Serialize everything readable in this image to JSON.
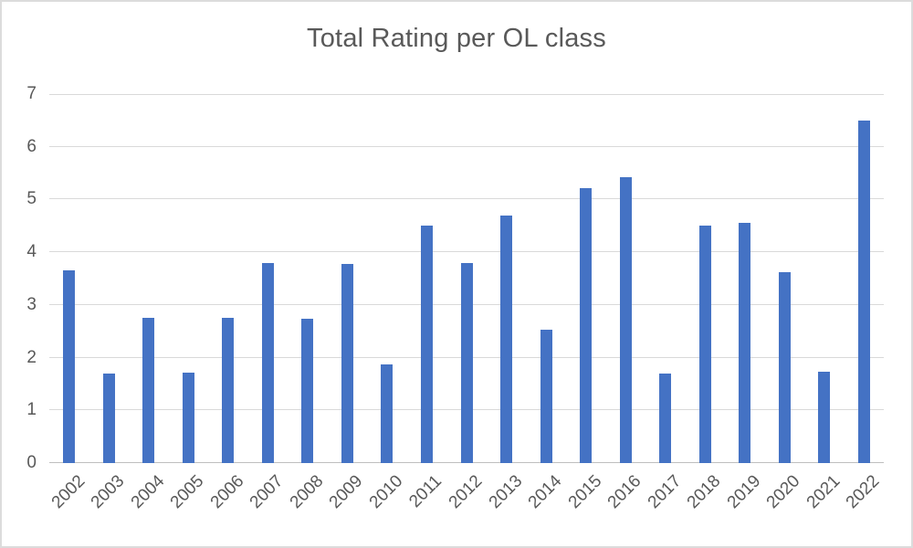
{
  "chart_data": {
    "type": "bar",
    "title": "Total Rating per OL class",
    "categories": [
      "2002",
      "2003",
      "2004",
      "2005",
      "2006",
      "2007",
      "2008",
      "2009",
      "2010",
      "2011",
      "2012",
      "2013",
      "2014",
      "2015",
      "2016",
      "2017",
      "2018",
      "2019",
      "2020",
      "2021",
      "2022"
    ],
    "values": [
      3.65,
      1.7,
      2.75,
      1.71,
      2.76,
      3.8,
      2.74,
      3.78,
      1.87,
      4.5,
      3.8,
      4.7,
      2.53,
      5.21,
      5.42,
      1.7,
      4.5,
      4.56,
      3.62,
      1.73,
      6.5
    ],
    "xlabel": "",
    "ylabel": "",
    "ylim": [
      0,
      7
    ],
    "y_ticks": [
      0,
      1,
      2,
      3,
      4,
      5,
      6,
      7
    ],
    "grid": "horizontal-only",
    "legend": "none",
    "x_tick_rotation_deg": 45,
    "bar_color": "#4472C4",
    "title_color": "#595959",
    "tick_label_color": "#595959",
    "gridline_color": "#D9D9D9",
    "axis_line_color": "#BFBFBF",
    "background_color": "#FFFFFF",
    "frame_color": "#DCDCDC"
  }
}
